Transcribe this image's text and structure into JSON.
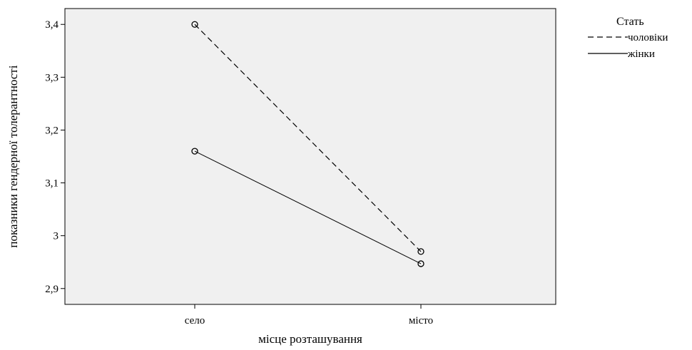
{
  "chart_data": {
    "type": "line",
    "title": "",
    "xlabel": "місце розташування",
    "ylabel": "показники гендерної толерантності",
    "categories": [
      "село",
      "місто"
    ],
    "ylim": [
      2.87,
      3.43
    ],
    "yticks": [
      2.9,
      3.0,
      3.1,
      3.2,
      3.3,
      3.4
    ],
    "ytick_labels": [
      "2,9",
      "3",
      "3,1",
      "3,2",
      "3,3",
      "3,4"
    ],
    "grid": false,
    "legend": {
      "title": "Стать",
      "placement": "right"
    },
    "plot_background": "#f0f0f0",
    "series": [
      {
        "name": "чоловіки",
        "values": [
          3.4,
          2.97
        ],
        "line_style": "dashed",
        "color": "#000000"
      },
      {
        "name": "жінки",
        "values": [
          3.16,
          2.947
        ],
        "line_style": "solid",
        "color": "#000000"
      }
    ]
  }
}
